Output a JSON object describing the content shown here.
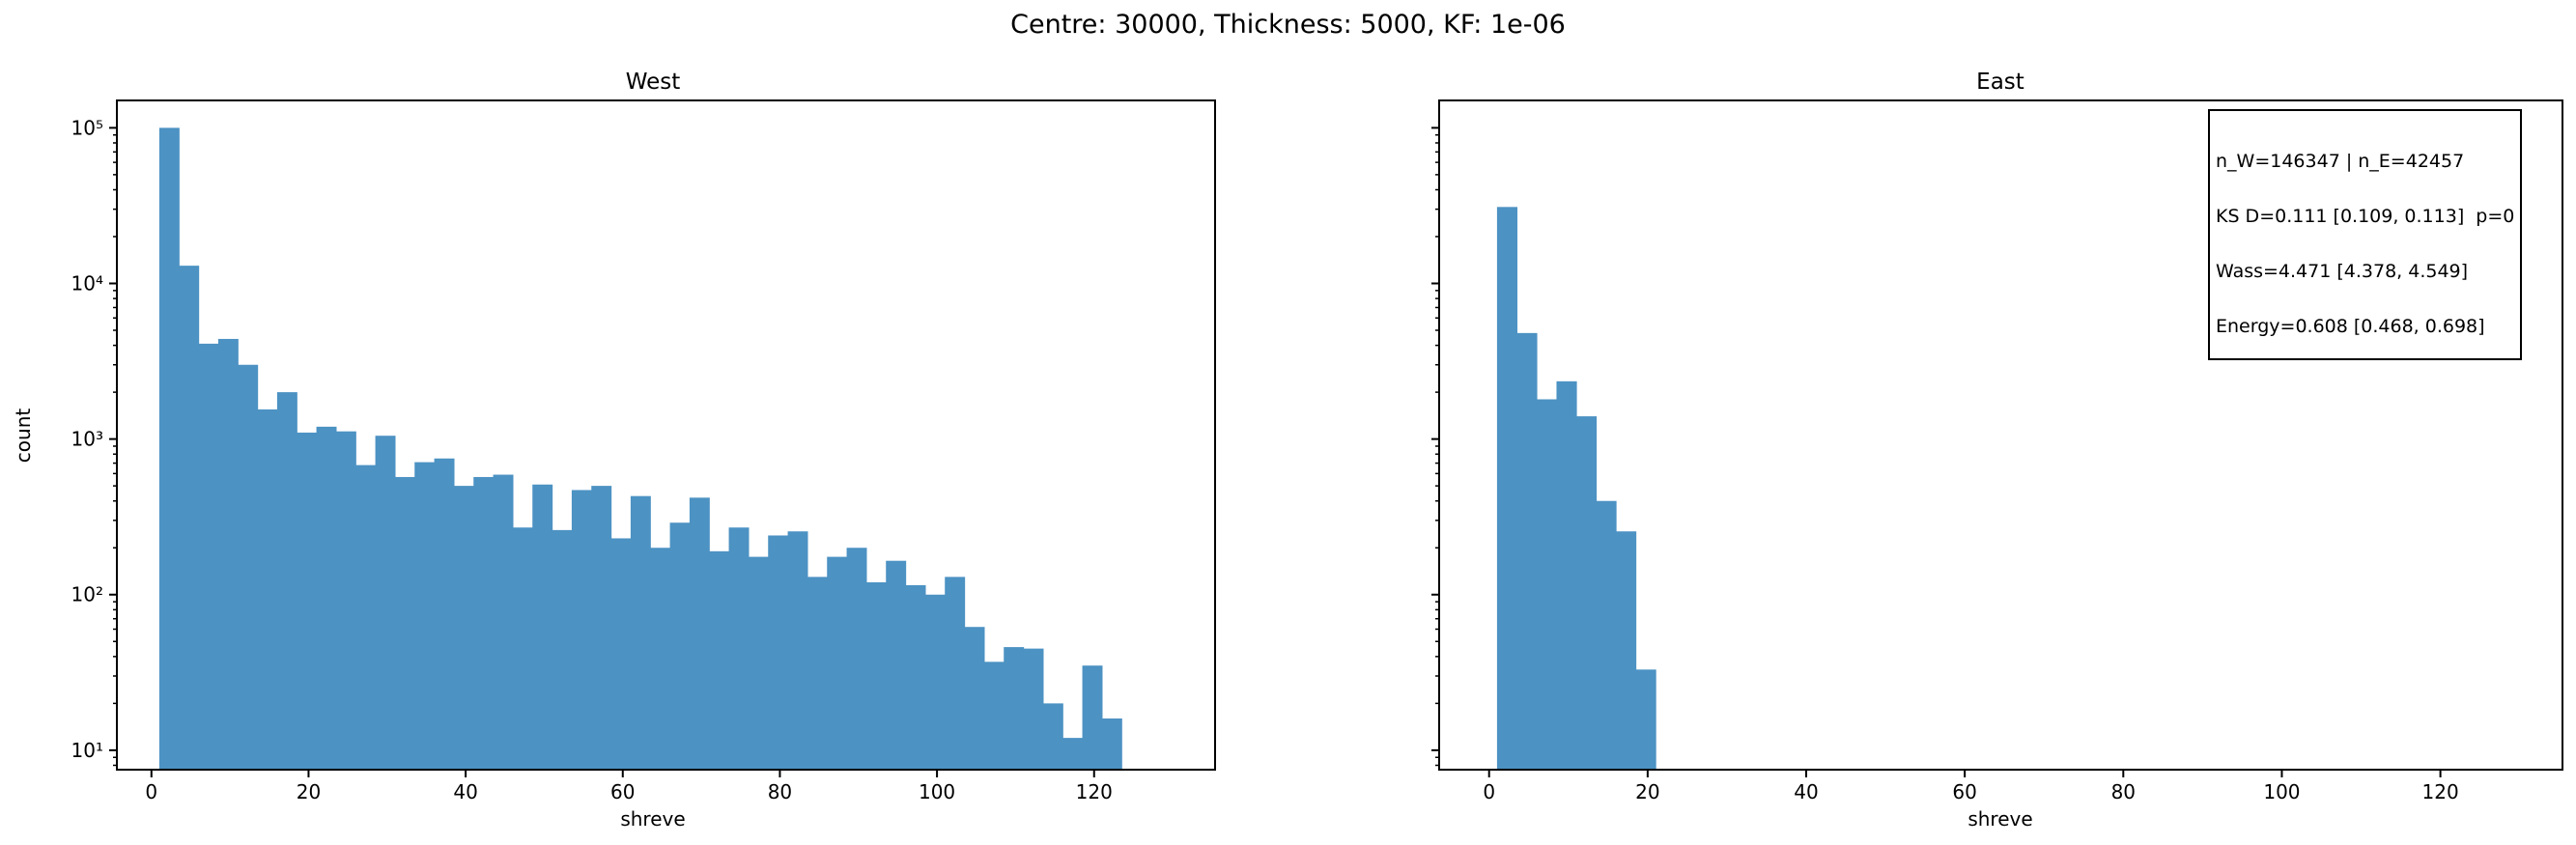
{
  "figure": {
    "suptitle": "Centre: 30000, Thickness: 5000, KF: 1e-06"
  },
  "annotation": {
    "lines": [
      "n_W=146347 | n_E=42457",
      "KS D=0.111 [0.109, 0.113]  p=0",
      "Wass=4.471 [4.378, 4.549]",
      "Energy=0.608 [0.468, 0.698]"
    ]
  },
  "colors": {
    "bar": "#4c92c3"
  },
  "chart_data": [
    {
      "type": "bar",
      "title": "West",
      "xlabel": "shreve",
      "ylabel": "count",
      "yscale": "log",
      "xlim": [
        -4.4,
        135.4
      ],
      "ylim": [
        7.5,
        150000
      ],
      "xticks": [
        0,
        20,
        40,
        60,
        80,
        100,
        120
      ],
      "xtick_labels": [
        "0",
        "20",
        "40",
        "60",
        "80",
        "100",
        "120"
      ],
      "yticks": [
        10,
        100,
        1000,
        10000,
        100000
      ],
      "ytick_labels": [
        "10¹",
        "10²",
        "10³",
        "10⁴",
        "10⁵"
      ],
      "bin_start": 1,
      "bin_width": 2.5,
      "values": [
        100000,
        13000,
        4100,
        4400,
        3000,
        1550,
        2000,
        1100,
        1200,
        1120,
        680,
        1050,
        570,
        710,
        750,
        500,
        570,
        590,
        270,
        510,
        260,
        470,
        500,
        230,
        430,
        200,
        290,
        420,
        190,
        270,
        175,
        240,
        255,
        130,
        175,
        200,
        120,
        165,
        115,
        100,
        130,
        62,
        37,
        46,
        45,
        20,
        12,
        35,
        16
      ],
      "grid": false
    },
    {
      "type": "bar",
      "title": "East",
      "xlabel": "shreve",
      "ylabel": "",
      "yscale": "log",
      "xlim": [
        -6.3,
        135.4
      ],
      "ylim": [
        7.5,
        150000
      ],
      "xticks": [
        0,
        20,
        40,
        60,
        80,
        100,
        120
      ],
      "xtick_labels": [
        "0",
        "20",
        "40",
        "60",
        "80",
        "100",
        "120"
      ],
      "yticks": [
        10,
        100,
        1000,
        10000,
        100000
      ],
      "ytick_labels": [
        "",
        "",
        "",
        "",
        ""
      ],
      "bin_start": 1,
      "bin_width": 2.5,
      "values": [
        31000,
        4800,
        1800,
        2350,
        1400,
        400,
        255,
        33
      ],
      "grid": false
    }
  ]
}
